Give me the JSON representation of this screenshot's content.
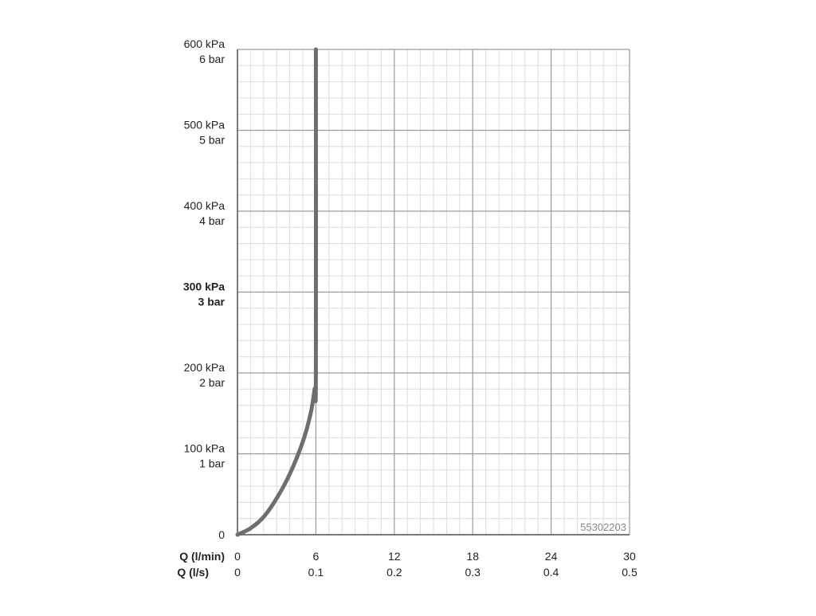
{
  "chart_data": {
    "type": "line",
    "y_axis": {
      "range": [
        0,
        600
      ],
      "ticks": [
        {
          "value": 0,
          "kpa": "0",
          "bar": "",
          "bold": false
        },
        {
          "value": 100,
          "kpa": "100 kPa",
          "bar": "1 bar",
          "bold": false
        },
        {
          "value": 200,
          "kpa": "200 kPa",
          "bar": "2 bar",
          "bold": false
        },
        {
          "value": 300,
          "kpa": "300 kPa",
          "bar": "3 bar",
          "bold": true
        },
        {
          "value": 400,
          "kpa": "400 kPa",
          "bar": "4 bar",
          "bold": false
        },
        {
          "value": 500,
          "kpa": "500 kPa",
          "bar": "5 bar",
          "bold": false
        },
        {
          "value": 600,
          "kpa": "600 kPa",
          "bar": "6 bar",
          "bold": false
        }
      ],
      "minor_step": 20
    },
    "x_axis": {
      "range": [
        0,
        30
      ],
      "label_lmin": "Q (l/min)",
      "label_ls": "Q (l/s)",
      "ticks": [
        {
          "value": 0,
          "lmin": "0",
          "ls": "0"
        },
        {
          "value": 6,
          "lmin": "6",
          "ls": "0.1"
        },
        {
          "value": 12,
          "lmin": "12",
          "ls": "0.2"
        },
        {
          "value": 18,
          "lmin": "18",
          "ls": "0.3"
        },
        {
          "value": 24,
          "lmin": "24",
          "ls": "0.4"
        },
        {
          "value": 30,
          "lmin": "30",
          "ls": "0.5"
        }
      ],
      "minor_step": 1
    },
    "grid": true,
    "series": [
      {
        "color": "#6e6e6e",
        "points": [
          {
            "x": 0,
            "y": 0
          },
          {
            "x": 1.0,
            "y": 8
          },
          {
            "x": 2.0,
            "y": 22
          },
          {
            "x": 3.0,
            "y": 45
          },
          {
            "x": 4.0,
            "y": 75
          },
          {
            "x": 5.0,
            "y": 115
          },
          {
            "x": 5.6,
            "y": 150
          },
          {
            "x": 5.9,
            "y": 180
          },
          {
            "x": 6.0,
            "y": 200
          },
          {
            "x": 6.0,
            "y": 600
          }
        ]
      }
    ],
    "annotation": "55302203"
  },
  "colors": {
    "major_grid": "#9a9a9a",
    "minor_grid": "#dcdcdc",
    "axis": "#7a7a7a"
  }
}
